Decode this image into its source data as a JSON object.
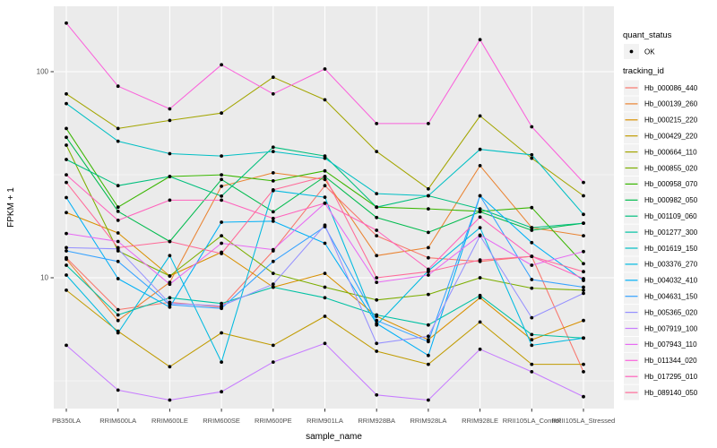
{
  "figure": {
    "background": "#FFFFFF",
    "panel_background": "#EBEBEB",
    "grid_color": "#FFFFFF",
    "axis_text_color": "#4D4D4D",
    "title_text_color": "#000000",
    "point_color": "#000000",
    "legend_key_fill": "#F2F2F2"
  },
  "axes": {
    "y_scale": "log10",
    "y_ticks": [
      {
        "label": "100",
        "value": 100
      },
      {
        "label": "10",
        "value": 10
      }
    ],
    "y_minor_breaks": [
      31.62,
      3.162
    ]
  },
  "legend": {
    "quant_status": {
      "title": "quant_status",
      "items": [
        {
          "label": "OK",
          "marker": "point"
        }
      ]
    },
    "tracking_id": {
      "title": "tracking_id"
    }
  },
  "chart_data": {
    "type": "line",
    "title": "",
    "xlabel": "sample_name",
    "ylabel": "FPKM + 1",
    "y_scale": "log10",
    "ylim": [
      2.3,
      210
    ],
    "grid": true,
    "legend_position": "right",
    "marker": "black-point",
    "quant_status": "OK",
    "categories": [
      "PB350LA",
      "RRIM600LA",
      "RRIM600LE",
      "RRIM600SE",
      "RRIM600PE",
      "RRIM901LA",
      "RRIM928BA",
      "RRIM928LA",
      "RRIM928LE",
      "RRII105LA_Control",
      "RRII105LA_Stressed"
    ],
    "series": [
      {
        "name": "Hb_000086_440",
        "color": "#F8766D",
        "values": [
          12.5,
          7.0,
          7.6,
          7.2,
          13.5,
          28,
          16,
          12.5,
          12.0,
          12.7,
          3.5
        ]
      },
      {
        "name": "Hb_000139_260",
        "color": "#EA8331",
        "values": [
          12.3,
          6.2,
          9.5,
          27.8,
          32.3,
          30,
          12.8,
          14,
          35,
          17.5,
          16
        ]
      },
      {
        "name": "Hb_000215_220",
        "color": "#D89000",
        "values": [
          20.7,
          16.5,
          10.2,
          13.3,
          9.0,
          10.5,
          6.5,
          5.0,
          8.0,
          5.0,
          6.2
        ]
      },
      {
        "name": "Hb_000429_220",
        "color": "#C09B00",
        "values": [
          8.7,
          5.5,
          3.7,
          5.4,
          4.7,
          6.5,
          4.4,
          3.8,
          6.1,
          3.8,
          3.8
        ]
      },
      {
        "name": "Hb_000664_110",
        "color": "#A3A500",
        "values": [
          78,
          53,
          58,
          63,
          94,
          73,
          41,
          27,
          61,
          38,
          25
        ]
      },
      {
        "name": "Hb_000855_020",
        "color": "#7CAE00",
        "values": [
          44,
          13.5,
          10.2,
          16,
          10.5,
          9.0,
          7.8,
          8.3,
          10,
          8.9,
          8.7
        ]
      },
      {
        "name": "Hb_000958_070",
        "color": "#39B600",
        "values": [
          53,
          22,
          31,
          31.6,
          29.5,
          33,
          22,
          21.6,
          21,
          21.9,
          11.7
        ]
      },
      {
        "name": "Hb_000982_050",
        "color": "#00BB4E",
        "values": [
          48,
          21,
          15,
          30,
          20.9,
          31,
          19.6,
          16.6,
          20.9,
          17,
          18.4
        ]
      },
      {
        "name": "Hb_001109_060",
        "color": "#00BF7D",
        "values": [
          37.5,
          28,
          31,
          24.9,
          43,
          39,
          22,
          25,
          21.6,
          17.5,
          18.4
        ]
      },
      {
        "name": "Hb_001277_300",
        "color": "#00C1A3",
        "values": [
          11.5,
          6.6,
          8.0,
          7.5,
          9.0,
          8.0,
          6.6,
          5.9,
          8.2,
          5.3,
          5.1
        ]
      },
      {
        "name": "Hb_001619_150",
        "color": "#00BFC4",
        "values": [
          70,
          46,
          40,
          39,
          41,
          38,
          25.6,
          25,
          42,
          39.5,
          20.3
        ]
      },
      {
        "name": "Hb_003376_270",
        "color": "#00BAE0",
        "values": [
          10.3,
          5.4,
          12.8,
          3.9,
          26.5,
          24.6,
          5.9,
          10.8,
          17.5,
          4.7,
          5.1
        ]
      },
      {
        "name": "Hb_004032_410",
        "color": "#00B0F6",
        "values": [
          24.5,
          9.9,
          7.2,
          18.6,
          18.8,
          14.7,
          6.0,
          4.2,
          25,
          14.8,
          9.7
        ]
      },
      {
        "name": "Hb_004631_150",
        "color": "#35A2FF",
        "values": [
          13.5,
          12,
          7.4,
          7.1,
          12,
          17.7,
          6.2,
          4.9,
          25,
          9.8,
          9.0
        ]
      },
      {
        "name": "Hb_005365_020",
        "color": "#9590FF",
        "values": [
          14,
          13.8,
          7.5,
          7.3,
          9.3,
          18,
          4.8,
          5.2,
          16,
          6.4,
          8.4
        ]
      },
      {
        "name": "Hb_007919_100",
        "color": "#C77CFF",
        "values": [
          4.7,
          2.85,
          2.55,
          2.8,
          3.9,
          4.8,
          2.7,
          2.55,
          4.5,
          3.5,
          2.65
        ]
      },
      {
        "name": "Hb_007943_110",
        "color": "#E76BF3",
        "values": [
          16.4,
          15,
          9.3,
          14.7,
          13.7,
          23,
          9.5,
          10.3,
          16.1,
          11.5,
          13.4
        ]
      },
      {
        "name": "Hb_011344_020",
        "color": "#FA62DB",
        "values": [
          172,
          85,
          66,
          108,
          78,
          103,
          56,
          56,
          143,
          54,
          29
        ]
      },
      {
        "name": "Hb_017295_010",
        "color": "#FF62BC",
        "values": [
          31.6,
          19,
          23.8,
          23.8,
          19.4,
          23,
          17,
          11,
          19.7,
          12.7,
          9.9
        ]
      },
      {
        "name": "Hb_089140_050",
        "color": "#FF6A98",
        "values": [
          29,
          14,
          15,
          13.1,
          26.7,
          31,
          10,
          10.7,
          12.2,
          12.7,
          10.7
        ]
      }
    ]
  }
}
